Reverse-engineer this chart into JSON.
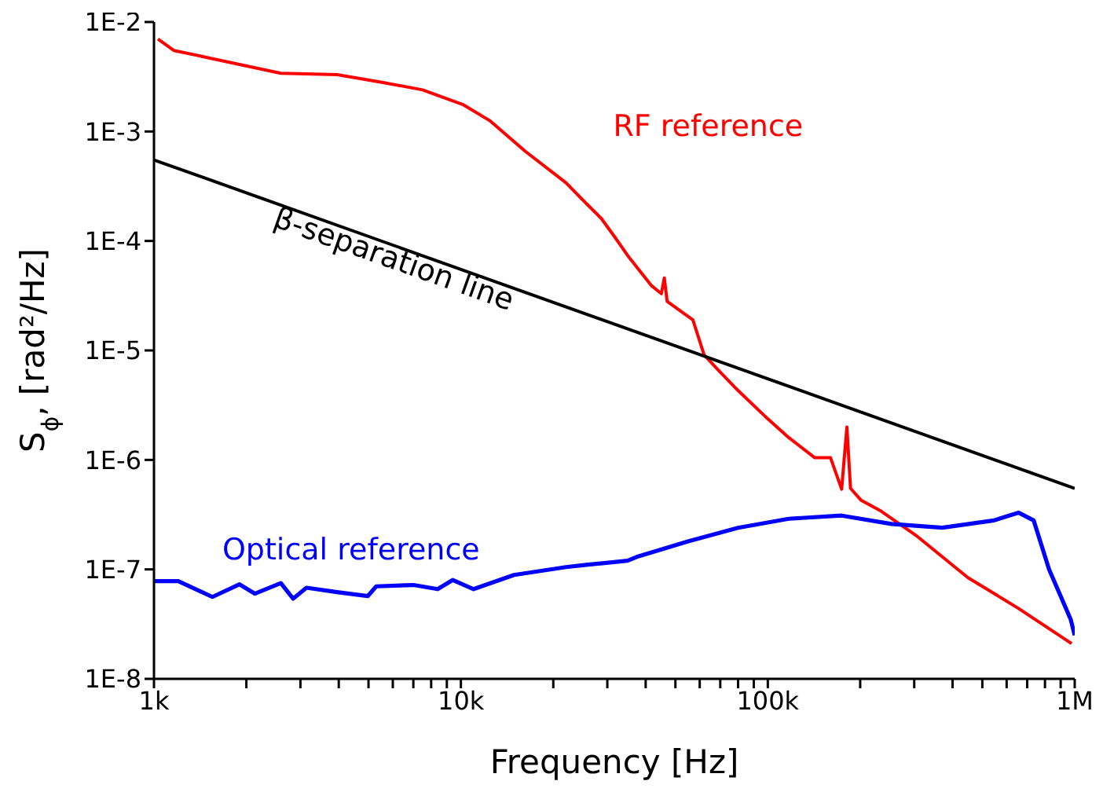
{
  "chart_data": {
    "type": "line",
    "xlabel": "Frequency [Hz]",
    "ylabel": "S$_{ϕ}$, [rad²/Hz]",
    "log": "xy",
    "marker": "none",
    "line_style": "solid",
    "xlim": [
      1000,
      1000000
    ],
    "ylim": [
      1e-08,
      0.01
    ],
    "xticks": [
      {
        "value": 1000,
        "label": "1k"
      },
      {
        "value": 2000,
        "label": null
      },
      {
        "value": 3000,
        "label": null
      },
      {
        "value": 4000,
        "label": null
      },
      {
        "value": 5000,
        "label": null
      },
      {
        "value": 6000,
        "label": null
      },
      {
        "value": 7000,
        "label": null
      },
      {
        "value": 8000,
        "label": null
      },
      {
        "value": 9000,
        "label": null
      },
      {
        "value": 10000,
        "label": "10k"
      },
      {
        "value": 20000,
        "label": null
      },
      {
        "value": 30000,
        "label": null
      },
      {
        "value": 40000,
        "label": null
      },
      {
        "value": 50000,
        "label": null
      },
      {
        "value": 60000,
        "label": null
      },
      {
        "value": 70000,
        "label": null
      },
      {
        "value": 80000,
        "label": null
      },
      {
        "value": 90000,
        "label": null
      },
      {
        "value": 100000,
        "label": "100k"
      },
      {
        "value": 200000,
        "label": null
      },
      {
        "value": 300000,
        "label": null
      },
      {
        "value": 400000,
        "label": null
      },
      {
        "value": 500000,
        "label": null
      },
      {
        "value": 600000,
        "label": null
      },
      {
        "value": 700000,
        "label": null
      },
      {
        "value": 800000,
        "label": null
      },
      {
        "value": 900000,
        "label": null
      },
      {
        "value": 1000000,
        "label": "1M"
      }
    ],
    "yticks": [
      {
        "value": 1e-08,
        "label": "1E-8"
      },
      {
        "value": 1e-07,
        "label": "1E-7"
      },
      {
        "value": 1e-06,
        "label": "1E-6"
      },
      {
        "value": 1e-05,
        "label": "1E-5"
      },
      {
        "value": 0.0001,
        "label": "1E-4"
      },
      {
        "value": 0.001,
        "label": "1E-3"
      },
      {
        "value": 0.01,
        "label": "1E-2"
      }
    ],
    "series": [
      {
        "name": "RF reference",
        "color": "#ff0000",
        "x": [
          1030,
          1160,
          1510,
          2590,
          3950,
          5570,
          7500,
          10200,
          12400,
          16200,
          22000,
          25600,
          28700,
          32000,
          34900,
          41800,
          45000,
          46000,
          47000,
          57000,
          62000,
          69000,
          80000,
          98000,
          117000,
          142000,
          160000,
          174000,
          181000,
          186000,
          201000,
          234000,
          307000,
          449000,
          656000,
          977000
        ],
        "values": [
          0.007,
          0.0055,
          0.0047,
          0.0034,
          0.0033,
          0.0028,
          0.0024,
          0.00175,
          0.00126,
          0.00066,
          0.00034,
          0.00022,
          0.00016,
          0.000105,
          7.4e-05,
          3.9e-05,
          3.3e-05,
          4.6e-05,
          2.8e-05,
          1.9e-05,
          9.1e-06,
          6.6e-06,
          4.3e-06,
          2.5e-06,
          1.6e-06,
          1.05e-06,
          1.05e-06,
          5.4e-07,
          2e-06,
          5.5e-07,
          4.3e-07,
          3.4e-07,
          2e-07,
          8.4e-08,
          4.4e-08,
          2.1e-08
        ]
      },
      {
        "name": "Optical reference",
        "color": "#0000ff",
        "x": [
          1000,
          1200,
          1550,
          1900,
          2130,
          2590,
          2840,
          3140,
          3950,
          4970,
          5300,
          7000,
          8400,
          9400,
          11000,
          14900,
          22000,
          25600,
          34900,
          37400,
          55000,
          80000,
          117000,
          174000,
          253000,
          370000,
          545000,
          656000,
          735000,
          825000,
          970000,
          1000000
        ],
        "values": [
          7.8e-08,
          7.8e-08,
          5.6e-08,
          7.3e-08,
          6e-08,
          7.5e-08,
          5.4e-08,
          6.8e-08,
          6.2e-08,
          5.7e-08,
          7e-08,
          7.2e-08,
          6.6e-08,
          8e-08,
          6.6e-08,
          8.9e-08,
          1.05e-07,
          1.1e-07,
          1.2e-07,
          1.3e-07,
          1.8e-07,
          2.4e-07,
          2.9e-07,
          3.1e-07,
          2.6e-07,
          2.4e-07,
          2.8e-07,
          3.3e-07,
          2.8e-07,
          1e-07,
          3.5e-08,
          2.5e-08
        ]
      },
      {
        "name": "β-separation line",
        "color": "#000000",
        "x": [
          1000,
          1000000
        ],
        "values": [
          0.00055,
          5.5e-07
        ]
      }
    ]
  }
}
